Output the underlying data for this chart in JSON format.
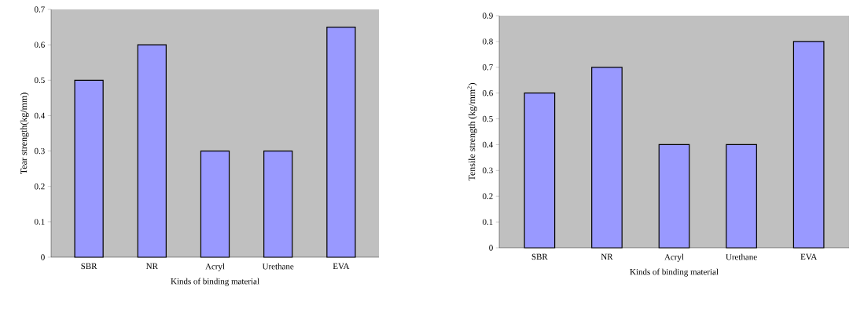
{
  "chart_data": [
    {
      "type": "bar",
      "categories": [
        "SBR",
        "NR",
        "Acryl",
        "Urethane",
        "EVA"
      ],
      "values": [
        0.5,
        0.6,
        0.3,
        0.3,
        0.65
      ],
      "color": "#9999ff",
      "ylim": [
        0,
        0.7
      ],
      "yticks": [
        0,
        0.1,
        0.2,
        0.3,
        0.4,
        0.5,
        0.6,
        0.7
      ],
      "xlabel": "Kinds of binding material",
      "ylabel": "Tear strength(kg/mm)"
    },
    {
      "type": "bar",
      "categories": [
        "SBR",
        "NR",
        "Acryl",
        "Urethane",
        "EVA"
      ],
      "values": [
        0.6,
        0.7,
        0.4,
        0.4,
        0.8
      ],
      "color": "#9999ff",
      "ylim": [
        0,
        0.9
      ],
      "yticks": [
        0,
        0.1,
        0.2,
        0.3,
        0.4,
        0.5,
        0.6,
        0.7,
        0.8,
        0.9
      ],
      "xlabel": "Kinds of binding material",
      "ylabel": "Tensile strength (kg/mm$^{2}$)"
    }
  ]
}
